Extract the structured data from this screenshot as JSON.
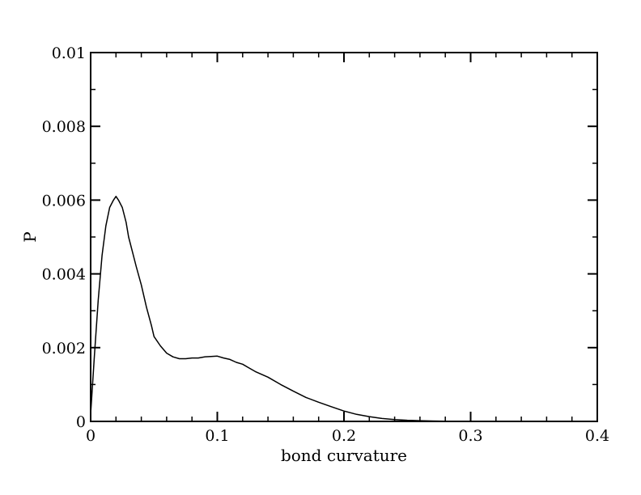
{
  "chart_data": {
    "type": "line",
    "title": "",
    "xlabel": "bond curvature",
    "ylabel": "P",
    "xlim": [
      0,
      0.4
    ],
    "ylim": [
      0,
      0.01
    ],
    "xticks": [
      0,
      0.1,
      0.2,
      0.3,
      0.4
    ],
    "xtick_labels": [
      "0",
      "0.1",
      "0.2",
      "0.3",
      "0.4"
    ],
    "yticks": [
      0,
      0.002,
      0.004,
      0.006,
      0.008,
      0.01
    ],
    "ytick_labels": [
      "0",
      "0.002",
      "0.004",
      "0.006",
      "0.008",
      "0.01"
    ],
    "x_minor_step": 0.02,
    "y_minor_step": 0.001,
    "grid": false,
    "series": [
      {
        "color": "#000000",
        "x": [
          0,
          0.003,
          0.006,
          0.009,
          0.012,
          0.015,
          0.018,
          0.02,
          0.022,
          0.025,
          0.028,
          0.03,
          0.033,
          0.036,
          0.04,
          0.044,
          0.048,
          0.05,
          0.055,
          0.06,
          0.065,
          0.07,
          0.075,
          0.08,
          0.085,
          0.09,
          0.095,
          0.1,
          0.105,
          0.11,
          0.115,
          0.12,
          0.125,
          0.13,
          0.14,
          0.15,
          0.16,
          0.17,
          0.18,
          0.19,
          0.2,
          0.21,
          0.22,
          0.23,
          0.24,
          0.25,
          0.26,
          0.27,
          0.28,
          0.29,
          0.3
        ],
        "y": [
          0.0002,
          0.0018,
          0.0033,
          0.0045,
          0.0053,
          0.0058,
          0.006,
          0.0061,
          0.006,
          0.0058,
          0.0054,
          0.005,
          0.0046,
          0.0042,
          0.0037,
          0.0031,
          0.0026,
          0.0023,
          0.00205,
          0.00185,
          0.00175,
          0.0017,
          0.0017,
          0.00172,
          0.00172,
          0.00175,
          0.00176,
          0.00177,
          0.00172,
          0.00168,
          0.0016,
          0.00155,
          0.00145,
          0.00135,
          0.0012,
          0.001,
          0.00082,
          0.00065,
          0.00052,
          0.0004,
          0.00028,
          0.00019,
          0.00013,
          8e-05,
          5e-05,
          3e-05,
          2e-05,
          1e-05,
          5e-06,
          0,
          0
        ]
      }
    ]
  }
}
